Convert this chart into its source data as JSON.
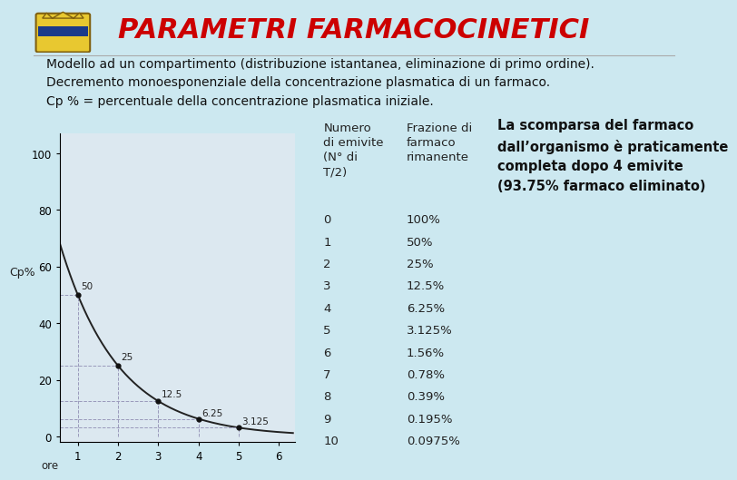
{
  "bg_color": "#cce8f0",
  "title": "PARAMETRI FARMACOCINETICI",
  "title_color": "#cc0000",
  "title_fontsize": 22,
  "subtitle_lines": [
    "Modello ad un compartimento (distribuzione istantanea, eliminazione di primo ordine).",
    "Decremento monoesponenziale della concentrazione plasmatica di un farmaco.",
    "Cp % = percentuale della concentrazione plasmatica iniziale."
  ],
  "subtitle_fontsize": 10,
  "subtitle_color": "#111111",
  "plot_bg_color": "#dce8f0",
  "curve_color": "#222222",
  "grid_color": "#9999bb",
  "dot_color": "#111111",
  "x_points": [
    1,
    2,
    3,
    4,
    5
  ],
  "y_points": [
    50,
    25,
    12.5,
    6.25,
    3.125
  ],
  "y_label": "Cp%",
  "x_ticks": [
    1,
    2,
    3,
    4,
    5,
    6
  ],
  "y_ticks": [
    0,
    20,
    40,
    60,
    80,
    100
  ],
  "xlim": [
    0.55,
    6.4
  ],
  "ylim": [
    -2,
    107
  ],
  "point_labels": [
    "50",
    "25",
    "12.5",
    "6.25",
    "3.125"
  ],
  "table_header_col1": "Numero\ndi emivite\n(N° di\nT/2)",
  "table_header_col2": "Frazione di\nfarmaco\nrimanente",
  "table_rows": [
    [
      "0",
      "100%"
    ],
    [
      "1",
      "50%"
    ],
    [
      "2",
      "25%"
    ],
    [
      "3",
      "12.5%"
    ],
    [
      "4",
      "6.25%"
    ],
    [
      "5",
      "3.125%"
    ],
    [
      "6",
      "1.56%"
    ],
    [
      "7",
      "0.78%"
    ],
    [
      "8",
      "0.39%"
    ],
    [
      "9",
      "0.195%"
    ],
    [
      "10",
      "0.0975%"
    ]
  ],
  "table_fontsize": 9.5,
  "note_text": "La scomparsa del farmaco\ndall’organismo è praticamente\ncompleta dopo 4 emivite\n(93.75% farmaco eliminato)",
  "note_fontsize": 10.5,
  "note_color": "#111111"
}
